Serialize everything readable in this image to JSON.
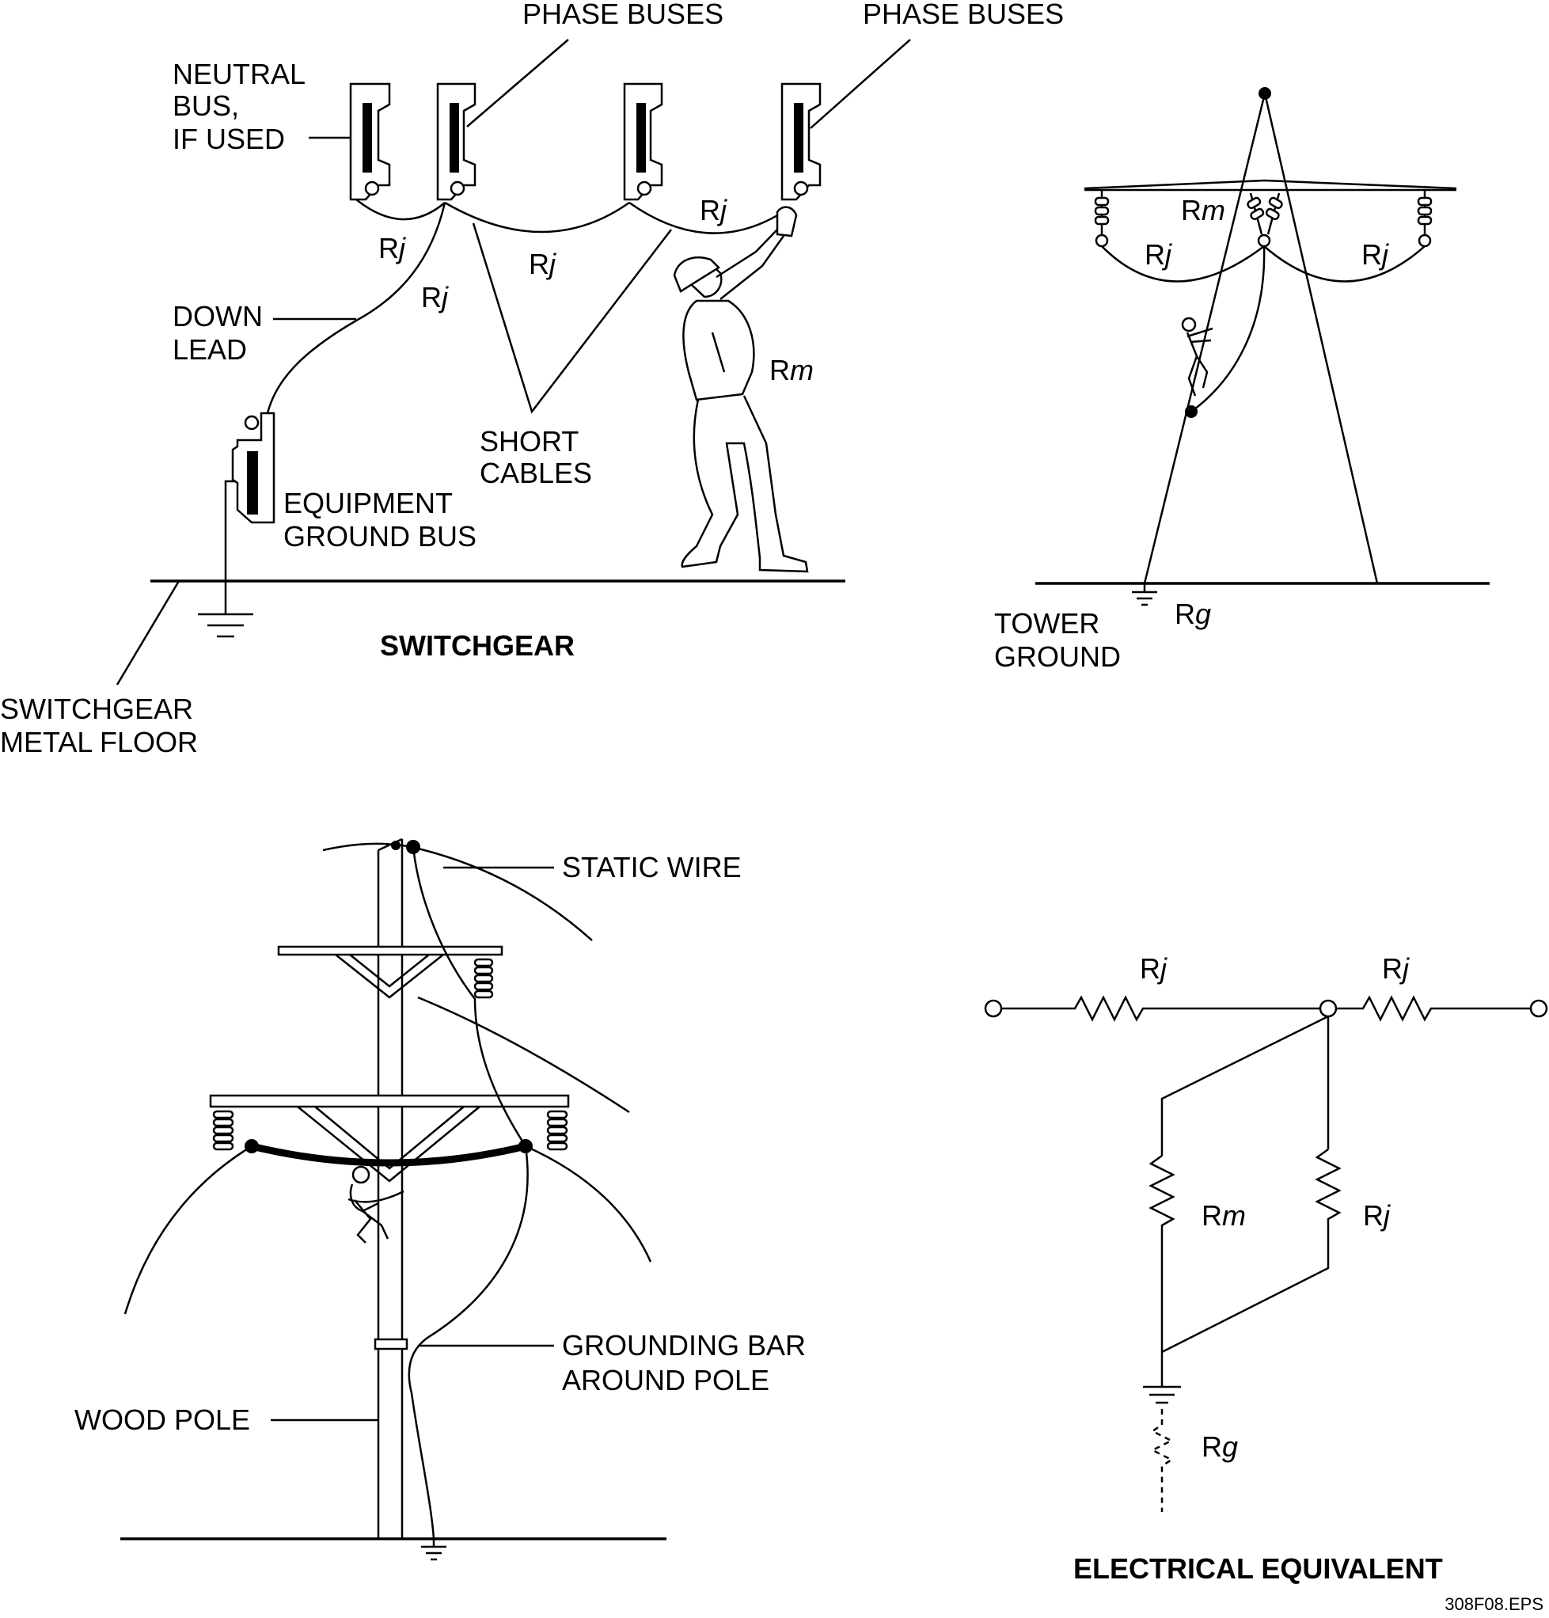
{
  "switchgear": {
    "title": "SWITCHGEAR",
    "phase_buses_left": "PHASE BUSES",
    "phase_buses_right": "PHASE BUSES",
    "neutral_bus": [
      "NEUTRAL",
      "BUS,",
      "IF USED"
    ],
    "down_lead": [
      "DOWN",
      "LEAD"
    ],
    "short_cables": [
      "SHORT",
      "CABLES"
    ],
    "equipment_ground_bus": [
      "EQUIPMENT",
      "GROUND BUS"
    ],
    "metal_floor": [
      "SWITCHGEAR",
      "METAL FLOOR"
    ]
  },
  "tower": {
    "tower_ground": [
      "TOWER",
      "GROUND"
    ]
  },
  "pole": {
    "static_wire": "STATIC WIRE",
    "grounding_bar": [
      "GROUNDING BAR",
      "AROUND POLE"
    ],
    "wood_pole": "WOOD POLE"
  },
  "equivalent": {
    "title": "ELECTRICAL EQUIVALENT"
  },
  "symbols": {
    "R": "R",
    "j": "j",
    "m": "m",
    "g": "g"
  },
  "file_ref": "308F08.EPS"
}
